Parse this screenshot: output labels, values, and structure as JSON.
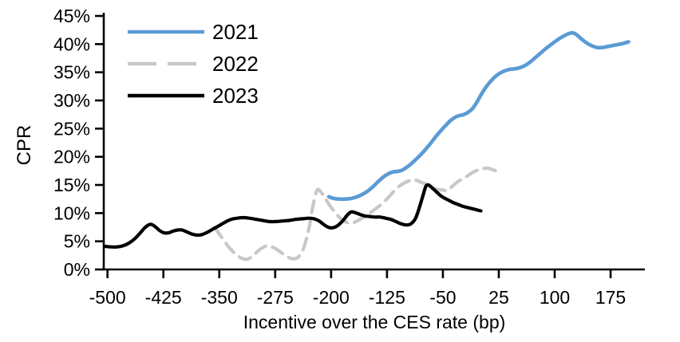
{
  "chart_data": {
    "type": "line",
    "title": "",
    "xlabel": "Incentive over the CES rate (bp)",
    "ylabel": "CPR",
    "xlim": [
      -505,
      221
    ],
    "ylim": [
      0,
      45
    ],
    "xticks": [
      -500,
      -425,
      -350,
      -275,
      -200,
      -125,
      -50,
      25,
      100,
      175
    ],
    "yticks": [
      0,
      5,
      10,
      15,
      20,
      25,
      30,
      35,
      40,
      45
    ],
    "ytick_suffix": "%",
    "grid": false,
    "legend_position": "top-left-inside",
    "series": [
      {
        "name": "2021",
        "color": "#5B9BD5",
        "style": "solid",
        "width": 4.6,
        "points": [
          [
            -203,
            12.9
          ],
          [
            -196,
            12.6
          ],
          [
            -189,
            12.5
          ],
          [
            -181,
            12.5
          ],
          [
            -173,
            12.6
          ],
          [
            -165,
            12.9
          ],
          [
            -157,
            13.4
          ],
          [
            -150,
            14.0
          ],
          [
            -143,
            14.8
          ],
          [
            -136,
            15.7
          ],
          [
            -129,
            16.5
          ],
          [
            -123,
            17.0
          ],
          [
            -117,
            17.3
          ],
          [
            -111,
            17.4
          ],
          [
            -105,
            17.6
          ],
          [
            -100,
            18.0
          ],
          [
            -94,
            18.6
          ],
          [
            -88,
            19.3
          ],
          [
            -81,
            20.2
          ],
          [
            -74,
            21.2
          ],
          [
            -67,
            22.3
          ],
          [
            -60,
            23.5
          ],
          [
            -53,
            24.6
          ],
          [
            -46,
            25.6
          ],
          [
            -40,
            26.4
          ],
          [
            -34,
            27.0
          ],
          [
            -28,
            27.3
          ],
          [
            -22,
            27.5
          ],
          [
            -16,
            27.9
          ],
          [
            -10,
            28.6
          ],
          [
            -4,
            29.8
          ],
          [
            2,
            31.2
          ],
          [
            8,
            32.4
          ],
          [
            14,
            33.4
          ],
          [
            20,
            34.2
          ],
          [
            26,
            34.8
          ],
          [
            32,
            35.2
          ],
          [
            39,
            35.5
          ],
          [
            46,
            35.6
          ],
          [
            53,
            35.8
          ],
          [
            60,
            36.2
          ],
          [
            67,
            36.8
          ],
          [
            74,
            37.6
          ],
          [
            81,
            38.4
          ],
          [
            88,
            39.2
          ],
          [
            95,
            39.9
          ],
          [
            102,
            40.6
          ],
          [
            109,
            41.2
          ],
          [
            116,
            41.7
          ],
          [
            123,
            42.0
          ],
          [
            129,
            41.7
          ],
          [
            136,
            40.9
          ],
          [
            143,
            40.2
          ],
          [
            150,
            39.7
          ],
          [
            157,
            39.4
          ],
          [
            164,
            39.4
          ],
          [
            172,
            39.6
          ],
          [
            180,
            39.8
          ],
          [
            188,
            40.0
          ],
          [
            194,
            40.2
          ],
          [
            199,
            40.4
          ]
        ]
      },
      {
        "name": "2022",
        "color": "#C8C8C8",
        "style": "dashed",
        "width": 4.2,
        "points": [
          [
            -356,
            7.4
          ],
          [
            -350,
            6.3
          ],
          [
            -344,
            5.2
          ],
          [
            -338,
            4.1
          ],
          [
            -332,
            3.2
          ],
          [
            -326,
            2.5
          ],
          [
            -320,
            2.0
          ],
          [
            -314,
            1.8
          ],
          [
            -308,
            2.1
          ],
          [
            -302,
            2.8
          ],
          [
            -296,
            3.5
          ],
          [
            -290,
            4.0
          ],
          [
            -285,
            4.2
          ],
          [
            -279,
            4.0
          ],
          [
            -272,
            3.5
          ],
          [
            -265,
            2.8
          ],
          [
            -258,
            2.2
          ],
          [
            -251,
            1.9
          ],
          [
            -245,
            2.1
          ],
          [
            -239,
            3.1
          ],
          [
            -234,
            5.0
          ],
          [
            -229,
            7.8
          ],
          [
            -225,
            10.8
          ],
          [
            -221,
            13.2
          ],
          [
            -218,
            14.2
          ],
          [
            -214,
            13.8
          ],
          [
            -209,
            12.9
          ],
          [
            -204,
            11.8
          ],
          [
            -198,
            10.7
          ],
          [
            -192,
            9.7
          ],
          [
            -186,
            8.9
          ],
          [
            -180,
            8.4
          ],
          [
            -174,
            8.2
          ],
          [
            -168,
            8.4
          ],
          [
            -161,
            8.9
          ],
          [
            -154,
            9.5
          ],
          [
            -147,
            10.1
          ],
          [
            -140,
            10.8
          ],
          [
            -133,
            11.5
          ],
          [
            -126,
            12.4
          ],
          [
            -119,
            13.4
          ],
          [
            -112,
            14.4
          ],
          [
            -105,
            15.1
          ],
          [
            -98,
            15.6
          ],
          [
            -91,
            15.9
          ],
          [
            -85,
            15.8
          ],
          [
            -78,
            15.4
          ],
          [
            -71,
            15.1
          ],
          [
            -64,
            14.5
          ],
          [
            -57,
            14.2
          ],
          [
            -50,
            14.1
          ],
          [
            -44,
            14.0
          ],
          [
            -37,
            14.8
          ],
          [
            -30,
            15.6
          ],
          [
            -23,
            16.1
          ],
          [
            -16,
            16.7
          ],
          [
            -9,
            17.3
          ],
          [
            -2,
            17.7
          ],
          [
            4,
            17.9
          ],
          [
            9,
            18.0
          ],
          [
            15,
            17.8
          ],
          [
            19,
            17.6
          ],
          [
            23,
            17.4
          ]
        ]
      },
      {
        "name": "2023",
        "color": "#000000",
        "style": "solid",
        "width": 4.2,
        "points": [
          [
            -503,
            4.1
          ],
          [
            -495,
            4.0
          ],
          [
            -487,
            4.0
          ],
          [
            -479,
            4.2
          ],
          [
            -471,
            4.7
          ],
          [
            -463,
            5.5
          ],
          [
            -456,
            6.5
          ],
          [
            -450,
            7.4
          ],
          [
            -445,
            7.9
          ],
          [
            -441,
            8.0
          ],
          [
            -436,
            7.6
          ],
          [
            -430,
            6.9
          ],
          [
            -424,
            6.5
          ],
          [
            -418,
            6.5
          ],
          [
            -412,
            6.8
          ],
          [
            -406,
            7.0
          ],
          [
            -400,
            7.0
          ],
          [
            -394,
            6.7
          ],
          [
            -387,
            6.3
          ],
          [
            -380,
            6.1
          ],
          [
            -373,
            6.2
          ],
          [
            -366,
            6.6
          ],
          [
            -358,
            7.2
          ],
          [
            -350,
            7.8
          ],
          [
            -342,
            8.4
          ],
          [
            -334,
            8.9
          ],
          [
            -326,
            9.1
          ],
          [
            -318,
            9.2
          ],
          [
            -310,
            9.1
          ],
          [
            -301,
            8.9
          ],
          [
            -292,
            8.7
          ],
          [
            -283,
            8.5
          ],
          [
            -274,
            8.5
          ],
          [
            -265,
            8.6
          ],
          [
            -256,
            8.7
          ],
          [
            -247,
            8.9
          ],
          [
            -238,
            9.0
          ],
          [
            -230,
            9.1
          ],
          [
            -223,
            9.0
          ],
          [
            -216,
            8.6
          ],
          [
            -210,
            8.0
          ],
          [
            -204,
            7.5
          ],
          [
            -198,
            7.4
          ],
          [
            -191,
            7.8
          ],
          [
            -184,
            8.7
          ],
          [
            -178,
            9.7
          ],
          [
            -173,
            10.2
          ],
          [
            -168,
            10.1
          ],
          [
            -162,
            9.8
          ],
          [
            -155,
            9.5
          ],
          [
            -148,
            9.4
          ],
          [
            -141,
            9.3
          ],
          [
            -134,
            9.3
          ],
          [
            -127,
            9.1
          ],
          [
            -120,
            8.9
          ],
          [
            -113,
            8.5
          ],
          [
            -106,
            8.1
          ],
          [
            -99,
            7.9
          ],
          [
            -93,
            8.1
          ],
          [
            -87,
            9.0
          ],
          [
            -82,
            10.8
          ],
          [
            -77,
            13.0
          ],
          [
            -73,
            14.7
          ],
          [
            -70,
            15.0
          ],
          [
            -67,
            14.8
          ],
          [
            -63,
            14.3
          ],
          [
            -58,
            13.7
          ],
          [
            -53,
            13.1
          ],
          [
            -47,
            12.6
          ],
          [
            -41,
            12.2
          ],
          [
            -35,
            11.8
          ],
          [
            -29,
            11.5
          ],
          [
            -23,
            11.2
          ],
          [
            -17,
            11.0
          ],
          [
            -11,
            10.8
          ],
          [
            -5,
            10.6
          ],
          [
            1,
            10.4
          ]
        ]
      }
    ]
  }
}
